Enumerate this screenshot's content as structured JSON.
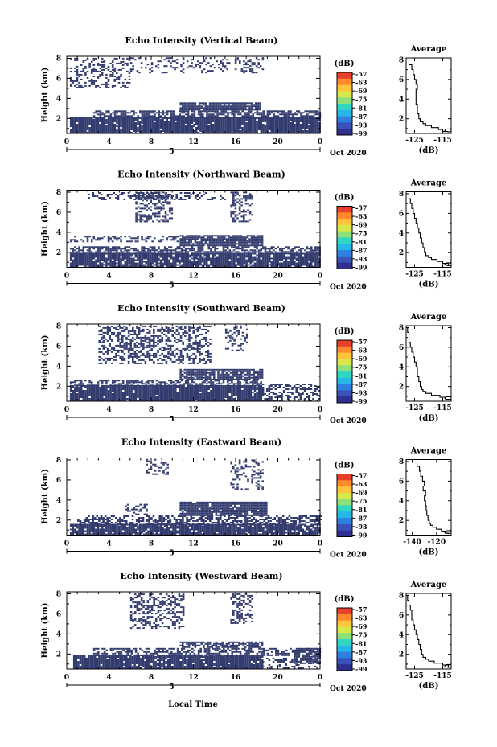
{
  "colors": {
    "echo": "#333c6e",
    "profile_line": "#000000",
    "colorbar": [
      "#2e2f8f",
      "#3a52b8",
      "#2f7fe0",
      "#26b6e8",
      "#2fd8c2",
      "#8ee07a",
      "#d8e84a",
      "#ffc43a",
      "#ff8a2e",
      "#e8402a"
    ]
  },
  "footer": {
    "xlabel": "Local Time"
  },
  "chart_data": [
    {
      "type": "heatmap",
      "title": "Echo Intensity (Vertical Beam)",
      "ylabel": "Height (km)",
      "xlabel": "",
      "x_ticks": [
        "0",
        "4",
        "8",
        "12",
        "16",
        "20",
        "0"
      ],
      "y_ticks": [
        "2",
        "4",
        "6",
        "8"
      ],
      "xlim": [
        0,
        24
      ],
      "ylim": [
        0.5,
        8.2
      ],
      "date_label": "5",
      "month_label": "Oct 2020",
      "colorbar": {
        "unit": "(dB)",
        "labels": [
          "-57",
          "-63",
          "-69",
          "-75",
          "-81",
          "-87",
          "-93",
          "-99"
        ]
      },
      "echo_regions": [
        {
          "t": [
            0.3,
            24
          ],
          "h": [
            0.5,
            2.0
          ],
          "density": 0.95
        },
        {
          "t": [
            2.5,
            24
          ],
          "h": [
            2.0,
            2.8
          ],
          "density": 0.7
        },
        {
          "t": [
            10.7,
            18.3
          ],
          "h": [
            2.8,
            3.6
          ],
          "density": 0.9
        },
        {
          "t": [
            0.3,
            6
          ],
          "h": [
            5.0,
            8.0
          ],
          "density": 0.35
        },
        {
          "t": [
            6,
            18.5
          ],
          "h": [
            6.5,
            8.0
          ],
          "density": 0.25
        }
      ],
      "profile": {
        "title": "Average",
        "xlabel": "(dB)",
        "x_ticks": [
          "-125",
          "-115"
        ],
        "y_ticks": [
          "2",
          "4",
          "6",
          "8"
        ],
        "xlim": [
          -128,
          -112
        ],
        "ylim": [
          0.5,
          8.2
        ],
        "height": [
          0.7,
          0.9,
          1.1,
          1.3,
          1.5,
          1.7,
          2.0,
          2.5,
          3.0,
          3.5,
          4.0,
          4.5,
          5.0,
          5.5,
          6.0,
          6.5,
          7.0,
          7.5,
          8.0
        ],
        "value": [
          -113,
          -115,
          -116.5,
          -119,
          -121,
          -122,
          -123,
          -123.5,
          -124,
          -124,
          -124.5,
          -124.5,
          -124.5,
          -124,
          -124.5,
          -125,
          -125.5,
          -126,
          -127
        ]
      }
    },
    {
      "type": "heatmap",
      "title": "Echo Intensity (Northward Beam)",
      "ylabel": "Height (km)",
      "xlabel": "",
      "x_ticks": [
        "0",
        "4",
        "8",
        "12",
        "16",
        "20",
        "0"
      ],
      "y_ticks": [
        "2",
        "4",
        "6",
        "8"
      ],
      "xlim": [
        0,
        24
      ],
      "ylim": [
        0.5,
        8.2
      ],
      "date_label": "5",
      "month_label": "Oct 2020",
      "colorbar": {
        "unit": "(dB)",
        "labels": [
          "-57",
          "-63",
          "-69",
          "-75",
          "-81",
          "-87",
          "-93",
          "-99"
        ]
      },
      "echo_regions": [
        {
          "t": [
            0.3,
            24
          ],
          "h": [
            0.5,
            1.8
          ],
          "density": 0.9
        },
        {
          "t": [
            0.3,
            24
          ],
          "h": [
            1.8,
            2.6
          ],
          "density": 0.6
        },
        {
          "t": [
            10.7,
            18.5
          ],
          "h": [
            2.6,
            3.6
          ],
          "density": 0.9
        },
        {
          "t": [
            0.3,
            10.5
          ],
          "h": [
            3.0,
            3.5
          ],
          "density": 0.4
        },
        {
          "t": [
            6.5,
            10
          ],
          "h": [
            5.0,
            8.0
          ],
          "density": 0.4
        },
        {
          "t": [
            15.5,
            17.5
          ],
          "h": [
            5.0,
            8.0
          ],
          "density": 0.45
        },
        {
          "t": [
            2,
            15
          ],
          "h": [
            7.2,
            8.0
          ],
          "density": 0.3
        }
      ],
      "profile": {
        "title": "Average",
        "xlabel": "(dB)",
        "x_ticks": [
          "-125",
          "-115"
        ],
        "y_ticks": [
          "2",
          "4",
          "6",
          "8"
        ],
        "xlim": [
          -128,
          -112
        ],
        "ylim": [
          0.5,
          8.2
        ],
        "height": [
          0.7,
          0.9,
          1.1,
          1.3,
          1.5,
          1.7,
          2.0,
          2.5,
          3.0,
          3.5,
          4.0,
          4.5,
          5.0,
          5.5,
          6.0,
          6.5,
          7.0,
          7.5,
          8.0
        ],
        "value": [
          -112,
          -113,
          -115,
          -117,
          -119,
          -120,
          -121,
          -121.5,
          -122,
          -122.5,
          -123,
          -123.5,
          -124,
          -124.5,
          -125,
          -125.5,
          -126,
          -126.5,
          -127
        ]
      }
    },
    {
      "type": "heatmap",
      "title": "Echo Intensity (Southward Beam)",
      "ylabel": "Height (km)",
      "xlabel": "",
      "x_ticks": [
        "0",
        "4",
        "8",
        "12",
        "16",
        "20",
        "0"
      ],
      "y_ticks": [
        "2",
        "4",
        "6",
        "8"
      ],
      "xlim": [
        0,
        24
      ],
      "ylim": [
        0.5,
        8.2
      ],
      "date_label": "5",
      "month_label": "Oct 2020",
      "colorbar": {
        "unit": "(dB)",
        "labels": [
          "-57",
          "-63",
          "-69",
          "-75",
          "-81",
          "-87",
          "-93",
          "-99"
        ]
      },
      "echo_regions": [
        {
          "t": [
            0.3,
            18.5
          ],
          "h": [
            0.5,
            2.0
          ],
          "density": 0.95
        },
        {
          "t": [
            18.5,
            24
          ],
          "h": [
            0.5,
            2.2
          ],
          "density": 0.45
        },
        {
          "t": [
            0.3,
            18.5
          ],
          "h": [
            2.0,
            2.6
          ],
          "density": 0.6
        },
        {
          "t": [
            10.7,
            18.5
          ],
          "h": [
            2.6,
            3.6
          ],
          "density": 0.85
        },
        {
          "t": [
            3,
            13.5
          ],
          "h": [
            4.2,
            8.0
          ],
          "density": 0.45
        },
        {
          "t": [
            15,
            17
          ],
          "h": [
            5.5,
            8.0
          ],
          "density": 0.3
        }
      ],
      "profile": {
        "title": "Average",
        "xlabel": "(dB)",
        "x_ticks": [
          "-125",
          "-115"
        ],
        "y_ticks": [
          "2",
          "4",
          "6",
          "8"
        ],
        "xlim": [
          -128,
          -112
        ],
        "ylim": [
          0.5,
          8.2
        ],
        "height": [
          0.7,
          0.9,
          1.1,
          1.3,
          1.5,
          1.7,
          2.0,
          2.5,
          3.0,
          3.5,
          4.0,
          4.5,
          5.0,
          5.5,
          6.0,
          6.5,
          7.0,
          7.5,
          8.0
        ],
        "value": [
          -112,
          -114,
          -116,
          -119,
          -121,
          -122,
          -122.5,
          -123,
          -123.5,
          -124,
          -124,
          -124.5,
          -125,
          -125.5,
          -126,
          -126.5,
          -127,
          -127,
          -127.5
        ]
      }
    },
    {
      "type": "heatmap",
      "title": "Echo Intensity (Eastward Beam)",
      "ylabel": "Height (km)",
      "xlabel": "",
      "x_ticks": [
        "0",
        "4",
        "8",
        "12",
        "16",
        "20",
        "0"
      ],
      "y_ticks": [
        "2",
        "4",
        "6",
        "8"
      ],
      "xlim": [
        0,
        24
      ],
      "ylim": [
        0.5,
        8.2
      ],
      "date_label": "5",
      "month_label": "Oct 2020",
      "colorbar": {
        "unit": "(dB)",
        "labels": [
          "-57",
          "-63",
          "-69",
          "-75",
          "-81",
          "-87",
          "-93",
          "-99"
        ]
      },
      "echo_regions": [
        {
          "t": [
            0.3,
            24
          ],
          "h": [
            0.5,
            1.5
          ],
          "density": 0.9
        },
        {
          "t": [
            1,
            24
          ],
          "h": [
            1.5,
            2.4
          ],
          "density": 0.55
        },
        {
          "t": [
            10.7,
            19
          ],
          "h": [
            2.4,
            3.8
          ],
          "density": 0.9
        },
        {
          "t": [
            5.5,
            7.5
          ],
          "h": [
            2.5,
            3.5
          ],
          "density": 0.35
        },
        {
          "t": [
            7.5,
            9.5
          ],
          "h": [
            6.5,
            8.0
          ],
          "density": 0.35
        },
        {
          "t": [
            15.5,
            18.5
          ],
          "h": [
            5.0,
            8.0
          ],
          "density": 0.3
        }
      ],
      "profile": {
        "title": "Average",
        "xlabel": "(dB)",
        "x_ticks": [
          "-140",
          "-120"
        ],
        "y_ticks": [
          "2",
          "4",
          "6",
          "8"
        ],
        "xlim": [
          -145,
          -108
        ],
        "ylim": [
          0.5,
          8.2
        ],
        "height": [
          0.7,
          0.9,
          1.1,
          1.3,
          1.5,
          1.7,
          2.0,
          2.5,
          3.0,
          3.5,
          4.0,
          4.5,
          5.0,
          5.5,
          6.0,
          6.5,
          7.0,
          7.5,
          8.0
        ],
        "value": [
          -110,
          -113,
          -116,
          -120,
          -123,
          -125,
          -126,
          -127,
          -128,
          -128.5,
          -129,
          -130,
          -129,
          -131,
          -130,
          -131.5,
          -133,
          -134,
          -136
        ]
      }
    },
    {
      "type": "heatmap",
      "title": "Echo Intensity (Westward Beam)",
      "ylabel": "Height (km)",
      "xlabel": "",
      "x_ticks": [
        "0",
        "4",
        "8",
        "12",
        "16",
        "20",
        "0"
      ],
      "y_ticks": [
        "2",
        "4",
        "6",
        "8"
      ],
      "xlim": [
        0,
        24
      ],
      "ylim": [
        0.5,
        8.2
      ],
      "date_label": "5",
      "month_label": "Oct 2020",
      "colorbar": {
        "unit": "(dB)",
        "labels": [
          "-57",
          "-63",
          "-69",
          "-75",
          "-81",
          "-87",
          "-93",
          "-99"
        ]
      },
      "echo_regions": [
        {
          "t": [
            0.6,
            18.5
          ],
          "h": [
            0.5,
            1.8
          ],
          "density": 0.95
        },
        {
          "t": [
            18.5,
            24
          ],
          "h": [
            0.5,
            1.5
          ],
          "density": 0.3
        },
        {
          "t": [
            2.5,
            24
          ],
          "h": [
            1.8,
            2.6
          ],
          "density": 0.55
        },
        {
          "t": [
            10.7,
            18.5
          ],
          "h": [
            2.6,
            3.2
          ],
          "density": 0.7
        },
        {
          "t": [
            6,
            11
          ],
          "h": [
            4.5,
            8.0
          ],
          "density": 0.4
        },
        {
          "t": [
            15.5,
            17.5
          ],
          "h": [
            5.0,
            8.0
          ],
          "density": 0.4
        },
        {
          "t": [
            21.5,
            24
          ],
          "h": [
            1.0,
            2.5
          ],
          "density": 0.7
        }
      ],
      "profile": {
        "title": "Average",
        "xlabel": "(dB)",
        "x_ticks": [
          "-125",
          "-115"
        ],
        "y_ticks": [
          "2",
          "4",
          "6",
          "8"
        ],
        "xlim": [
          -128,
          -112
        ],
        "ylim": [
          0.5,
          8.2
        ],
        "height": [
          0.7,
          0.9,
          1.1,
          1.3,
          1.5,
          1.7,
          2.0,
          2.5,
          3.0,
          3.5,
          4.0,
          4.5,
          5.0,
          5.5,
          6.0,
          6.5,
          7.0,
          7.5,
          8.0
        ],
        "value": [
          -112,
          -113,
          -115,
          -118,
          -120,
          -121,
          -122,
          -122.5,
          -123,
          -123.5,
          -124,
          -124.5,
          -125,
          -125.5,
          -126,
          -126,
          -126.5,
          -127,
          -127.5
        ]
      }
    }
  ]
}
